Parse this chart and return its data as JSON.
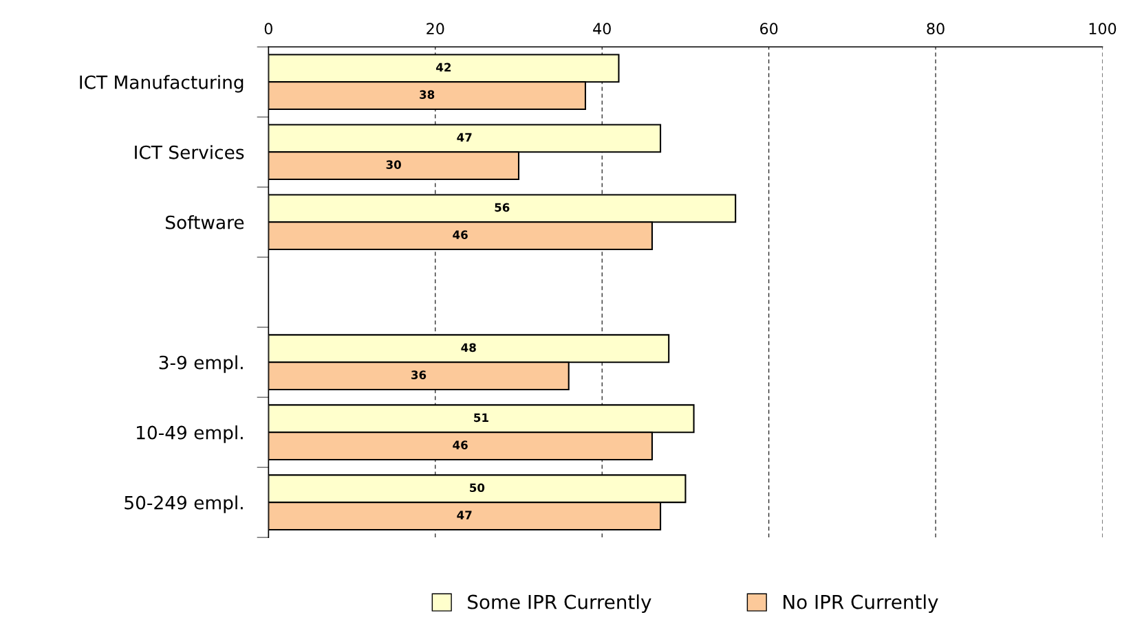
{
  "chart_data": {
    "type": "bar",
    "orientation": "horizontal",
    "categories": [
      "ICT Manufacturing",
      "ICT Services",
      "Software",
      null,
      "3-9 empl.",
      "10-49 empl.",
      "50-249 empl."
    ],
    "series": [
      {
        "name": "Some IPR Currently",
        "color": "#ffffcc",
        "values": [
          42,
          47,
          56,
          null,
          48,
          51,
          50
        ]
      },
      {
        "name": "No IPR Currently",
        "color": "#fcc99a",
        "values": [
          38,
          30,
          46,
          null,
          36,
          46,
          47
        ]
      }
    ],
    "xlim": [
      0,
      100
    ],
    "xticks": [
      0,
      20,
      40,
      60,
      80,
      100
    ],
    "grid": "x",
    "legend": "bottom",
    "data_labels": true
  }
}
